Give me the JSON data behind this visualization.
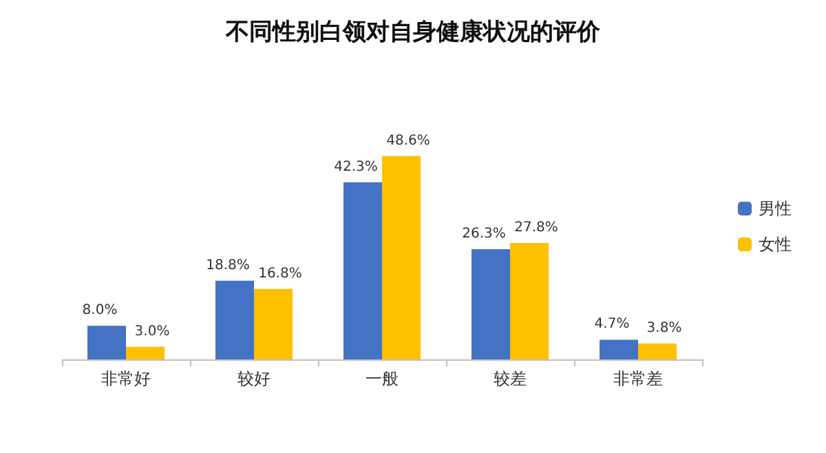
{
  "chart_data": {
    "type": "bar",
    "title": "不同性别白领对自身健康状况的评价",
    "categories": [
      "非常好",
      "较好",
      "一般",
      "较差",
      "非常差"
    ],
    "series": [
      {
        "name": "男性",
        "color": "#4472c4",
        "values": [
          8.0,
          18.8,
          42.3,
          26.3,
          4.7
        ],
        "value_labels": [
          "8.0%",
          "18.8%",
          "42.3%",
          "26.3%",
          "4.7%"
        ]
      },
      {
        "name": "女性",
        "color": "#ffc000",
        "values": [
          3.0,
          16.8,
          48.6,
          27.8,
          3.8
        ],
        "value_labels": [
          "3.0%",
          "16.8%",
          "48.6%",
          "27.8%",
          "3.8%"
        ]
      }
    ],
    "legend": "right"
  }
}
